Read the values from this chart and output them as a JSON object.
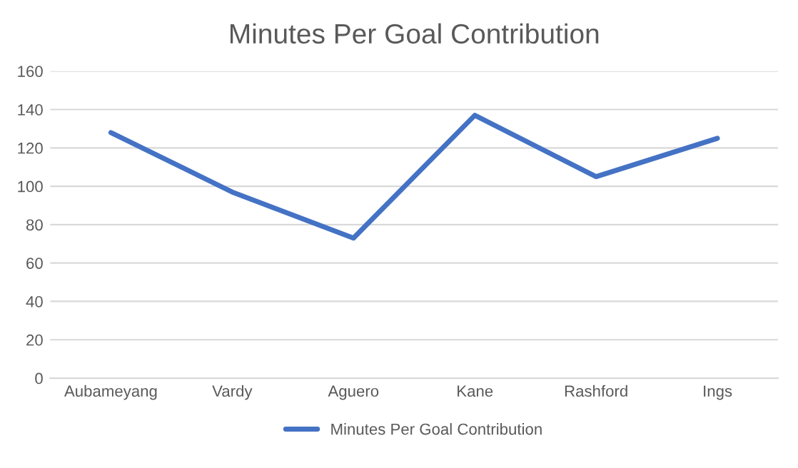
{
  "chart_data": {
    "type": "line",
    "title": "Minutes Per Goal Contribution",
    "categories": [
      "Aubameyang",
      "Vardy",
      "Aguero",
      "Kane",
      "Rashford",
      "Ings"
    ],
    "series": [
      {
        "name": "Minutes Per Goal Contribution",
        "color": "#4472c4",
        "values": [
          128,
          97,
          73,
          137,
          105,
          125
        ]
      }
    ],
    "ylim": [
      0,
      160
    ],
    "yticks": [
      0,
      20,
      40,
      60,
      80,
      100,
      120,
      140,
      160
    ],
    "grid": "y",
    "legend": "bottom",
    "marker": "none",
    "line_style": "solid"
  }
}
